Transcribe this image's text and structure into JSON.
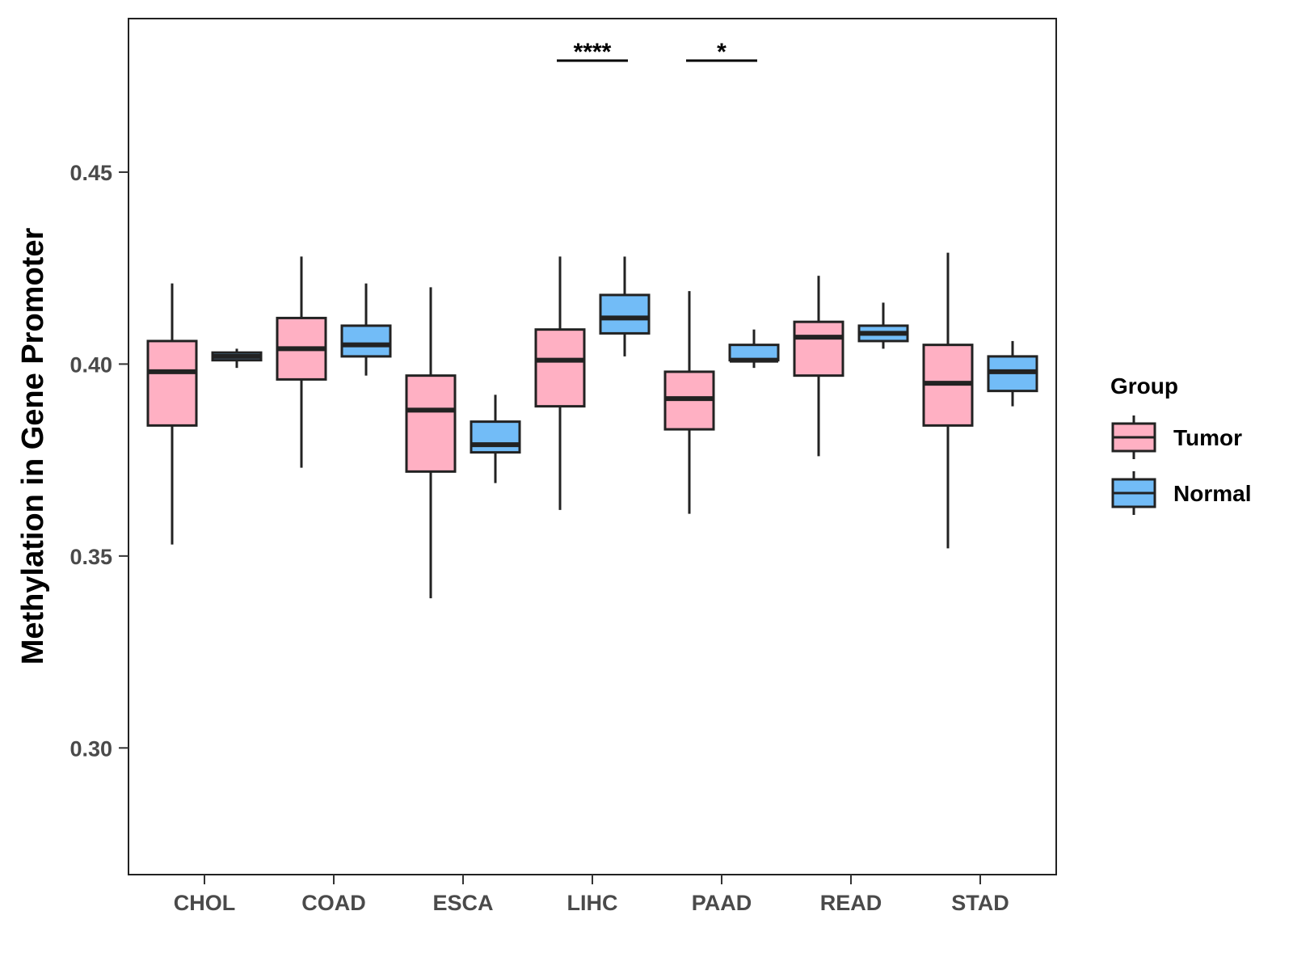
{
  "chart_data": {
    "type": "boxplot",
    "title": "",
    "xlabel": "",
    "ylabel": "Methylation in Gene Promoter",
    "ylim": [
      0.267,
      0.49
    ],
    "yticks": [
      0.3,
      0.35,
      0.4,
      0.45
    ],
    "ytick_labels": [
      "0.30",
      "0.35",
      "0.40",
      "0.45"
    ],
    "grid": false,
    "legend": {
      "title": "Group",
      "position": "right",
      "entries": [
        {
          "name": "Tumor",
          "color": "#FFB0C3"
        },
        {
          "name": "Normal",
          "color": "#72BCF7"
        }
      ]
    },
    "categories": [
      "CHOL",
      "COAD",
      "ESCA",
      "LIHC",
      "PAAD",
      "READ",
      "STAD"
    ],
    "series": [
      {
        "name": "Tumor",
        "color": "#FFB0C3",
        "boxes": [
          {
            "min": 0.353,
            "q1": 0.384,
            "median": 0.398,
            "q3": 0.406,
            "max": 0.421
          },
          {
            "min": 0.373,
            "q1": 0.396,
            "median": 0.404,
            "q3": 0.412,
            "max": 0.428
          },
          {
            "min": 0.339,
            "q1": 0.372,
            "median": 0.388,
            "q3": 0.397,
            "max": 0.42
          },
          {
            "min": 0.362,
            "q1": 0.389,
            "median": 0.401,
            "q3": 0.409,
            "max": 0.428
          },
          {
            "min": 0.361,
            "q1": 0.383,
            "median": 0.391,
            "q3": 0.398,
            "max": 0.419
          },
          {
            "min": 0.376,
            "q1": 0.397,
            "median": 0.407,
            "q3": 0.411,
            "max": 0.423
          },
          {
            "min": 0.352,
            "q1": 0.384,
            "median": 0.395,
            "q3": 0.405,
            "max": 0.429
          }
        ]
      },
      {
        "name": "Normal",
        "color": "#72BCF7",
        "boxes": [
          {
            "min": 0.399,
            "q1": 0.401,
            "median": 0.402,
            "q3": 0.403,
            "max": 0.404
          },
          {
            "min": 0.397,
            "q1": 0.402,
            "median": 0.405,
            "q3": 0.41,
            "max": 0.421
          },
          {
            "min": 0.369,
            "q1": 0.377,
            "median": 0.379,
            "q3": 0.385,
            "max": 0.392
          },
          {
            "min": 0.402,
            "q1": 0.408,
            "median": 0.412,
            "q3": 0.418,
            "max": 0.428
          },
          {
            "min": 0.399,
            "q1": 0.401,
            "median": 0.401,
            "q3": 0.405,
            "max": 0.409
          },
          {
            "min": 0.404,
            "q1": 0.406,
            "median": 0.408,
            "q3": 0.41,
            "max": 0.416
          },
          {
            "min": 0.389,
            "q1": 0.393,
            "median": 0.398,
            "q3": 0.402,
            "max": 0.406
          }
        ]
      }
    ],
    "annotations": [
      {
        "category": "LIHC",
        "label": "****"
      },
      {
        "category": "PAAD",
        "label": "*"
      }
    ]
  }
}
